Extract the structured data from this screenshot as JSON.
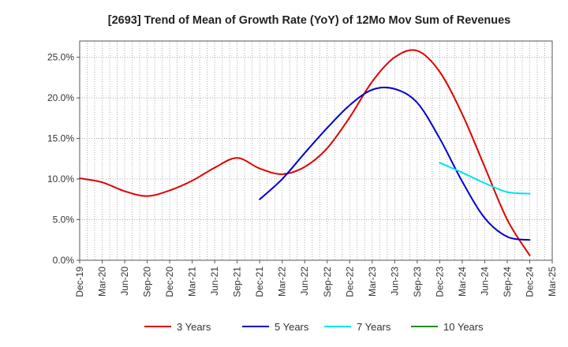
{
  "chart_data": {
    "type": "line",
    "title": "[2693]  Trend of Mean of Growth Rate (YoY) of 12Mo Mov Sum of Revenues",
    "xlabel": "",
    "ylabel": "",
    "categories": [
      "Dec-19",
      "Mar-20",
      "Jun-20",
      "Sep-20",
      "Dec-20",
      "Mar-21",
      "Jun-21",
      "Sep-21",
      "Dec-21",
      "Mar-22",
      "Jun-22",
      "Sep-22",
      "Dec-22",
      "Mar-23",
      "Jun-23",
      "Sep-23",
      "Dec-23",
      "Mar-24",
      "Jun-24",
      "Sep-24",
      "Dec-24",
      "Mar-25"
    ],
    "ylim": [
      0,
      27
    ],
    "y_ticks": [
      0,
      5,
      10,
      15,
      20,
      25
    ],
    "y_tick_labels": [
      "0.0%",
      "5.0%",
      "10.0%",
      "15.0%",
      "20.0%",
      "25.0%"
    ],
    "grid": true,
    "legend_position": "bottom",
    "series": [
      {
        "name": "3 Years",
        "color": "#dd0000",
        "values": [
          10.1,
          9.6,
          8.5,
          7.9,
          8.6,
          9.8,
          11.4,
          12.6,
          11.3,
          10.6,
          11.5,
          13.8,
          17.6,
          22.0,
          25.0,
          25.8,
          23.2,
          18.0,
          11.5,
          5.0,
          0.6,
          null
        ]
      },
      {
        "name": "5 Years",
        "color": "#0000cc",
        "values": [
          null,
          null,
          null,
          null,
          null,
          null,
          null,
          null,
          7.5,
          10.0,
          13.2,
          16.3,
          19.1,
          21.0,
          21.1,
          19.4,
          15.0,
          9.7,
          5.2,
          2.9,
          2.5,
          null
        ]
      },
      {
        "name": "7 Years",
        "color": "#00e5ee",
        "values": [
          null,
          null,
          null,
          null,
          null,
          null,
          null,
          null,
          null,
          null,
          null,
          null,
          null,
          null,
          null,
          null,
          12.0,
          10.8,
          9.5,
          8.4,
          8.2,
          null
        ]
      },
      {
        "name": "10 Years",
        "color": "#228b22",
        "values": [
          null,
          null,
          null,
          null,
          null,
          null,
          null,
          null,
          null,
          null,
          null,
          null,
          null,
          null,
          null,
          null,
          null,
          null,
          null,
          null,
          null,
          null
        ]
      }
    ]
  }
}
